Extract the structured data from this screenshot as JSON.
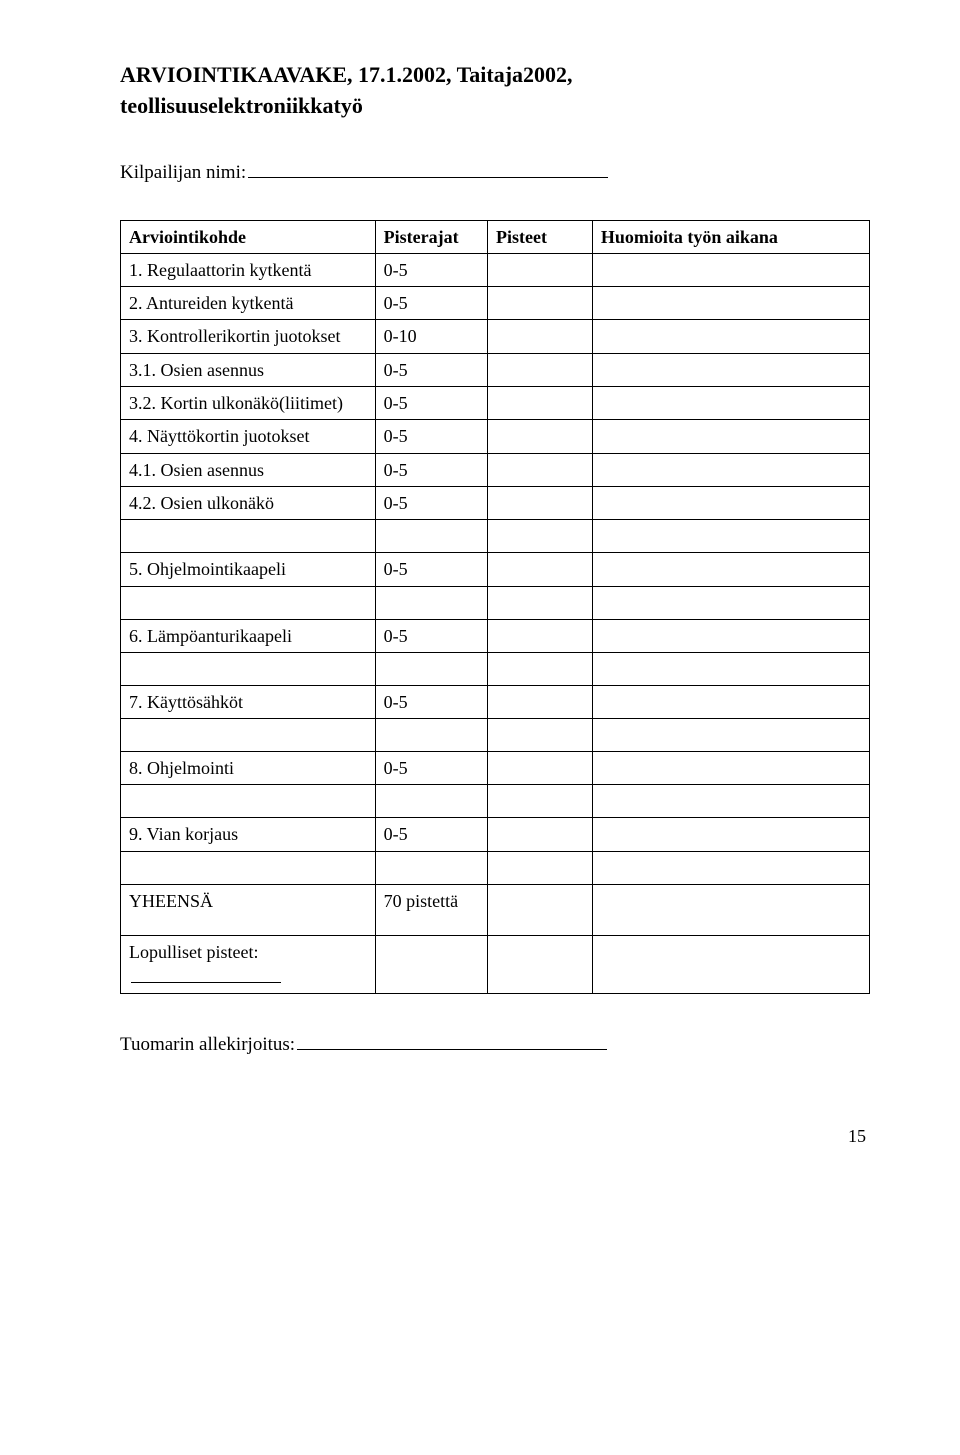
{
  "header": {
    "title_line_1": "ARVIOINTIKAAVAKE, 17.1.2002, Taitaja2002,",
    "title_line_2": "teollisuuselektroniikkatyö",
    "name_label": "Kilpailijan nimi:"
  },
  "table": {
    "headers": {
      "target": "Arviointikohde",
      "range": "Pisterajat",
      "points": "Pisteet",
      "notes": "Huomioita työn aikana"
    },
    "rows": [
      {
        "label": "1. Regulaattorin kytkentä",
        "range": "0-5"
      },
      {
        "label": "2. Antureiden kytkentä",
        "range": "0-5"
      },
      {
        "label": "3. Kontrollerikortin juotokset",
        "range": "0-10"
      },
      {
        "label": "3.1. Osien asennus",
        "range": "0-5"
      },
      {
        "label": "3.2. Kortin ulkonäkö(liitimet)",
        "range": "0-5",
        "range_bottom": true
      },
      {
        "label": "4. Näyttökortin juotokset",
        "range": "0-5"
      },
      {
        "label": "4.1. Osien asennus",
        "range": "0-5"
      },
      {
        "label": "4.2. Osien ulkonäkö",
        "range": "0-5"
      }
    ],
    "single_rows": [
      {
        "label": "5. Ohjelmointikaapeli",
        "range": "0-5"
      },
      {
        "label": "6. Lämpöanturikaapeli",
        "range": "0-5"
      },
      {
        "label": "7. Käyttösähköt",
        "range": "0-5"
      },
      {
        "label": "8. Ohjelmointi",
        "range": "0-5"
      },
      {
        "label": "9. Vian korjaus",
        "range": "0-5"
      }
    ],
    "total": {
      "label": "YHEENSÄ",
      "value": "70 pistettä"
    },
    "final_points_label": "Lopulliset pisteet:"
  },
  "signature_label": "Tuomarin allekirjoitus:",
  "page_number": "15"
}
